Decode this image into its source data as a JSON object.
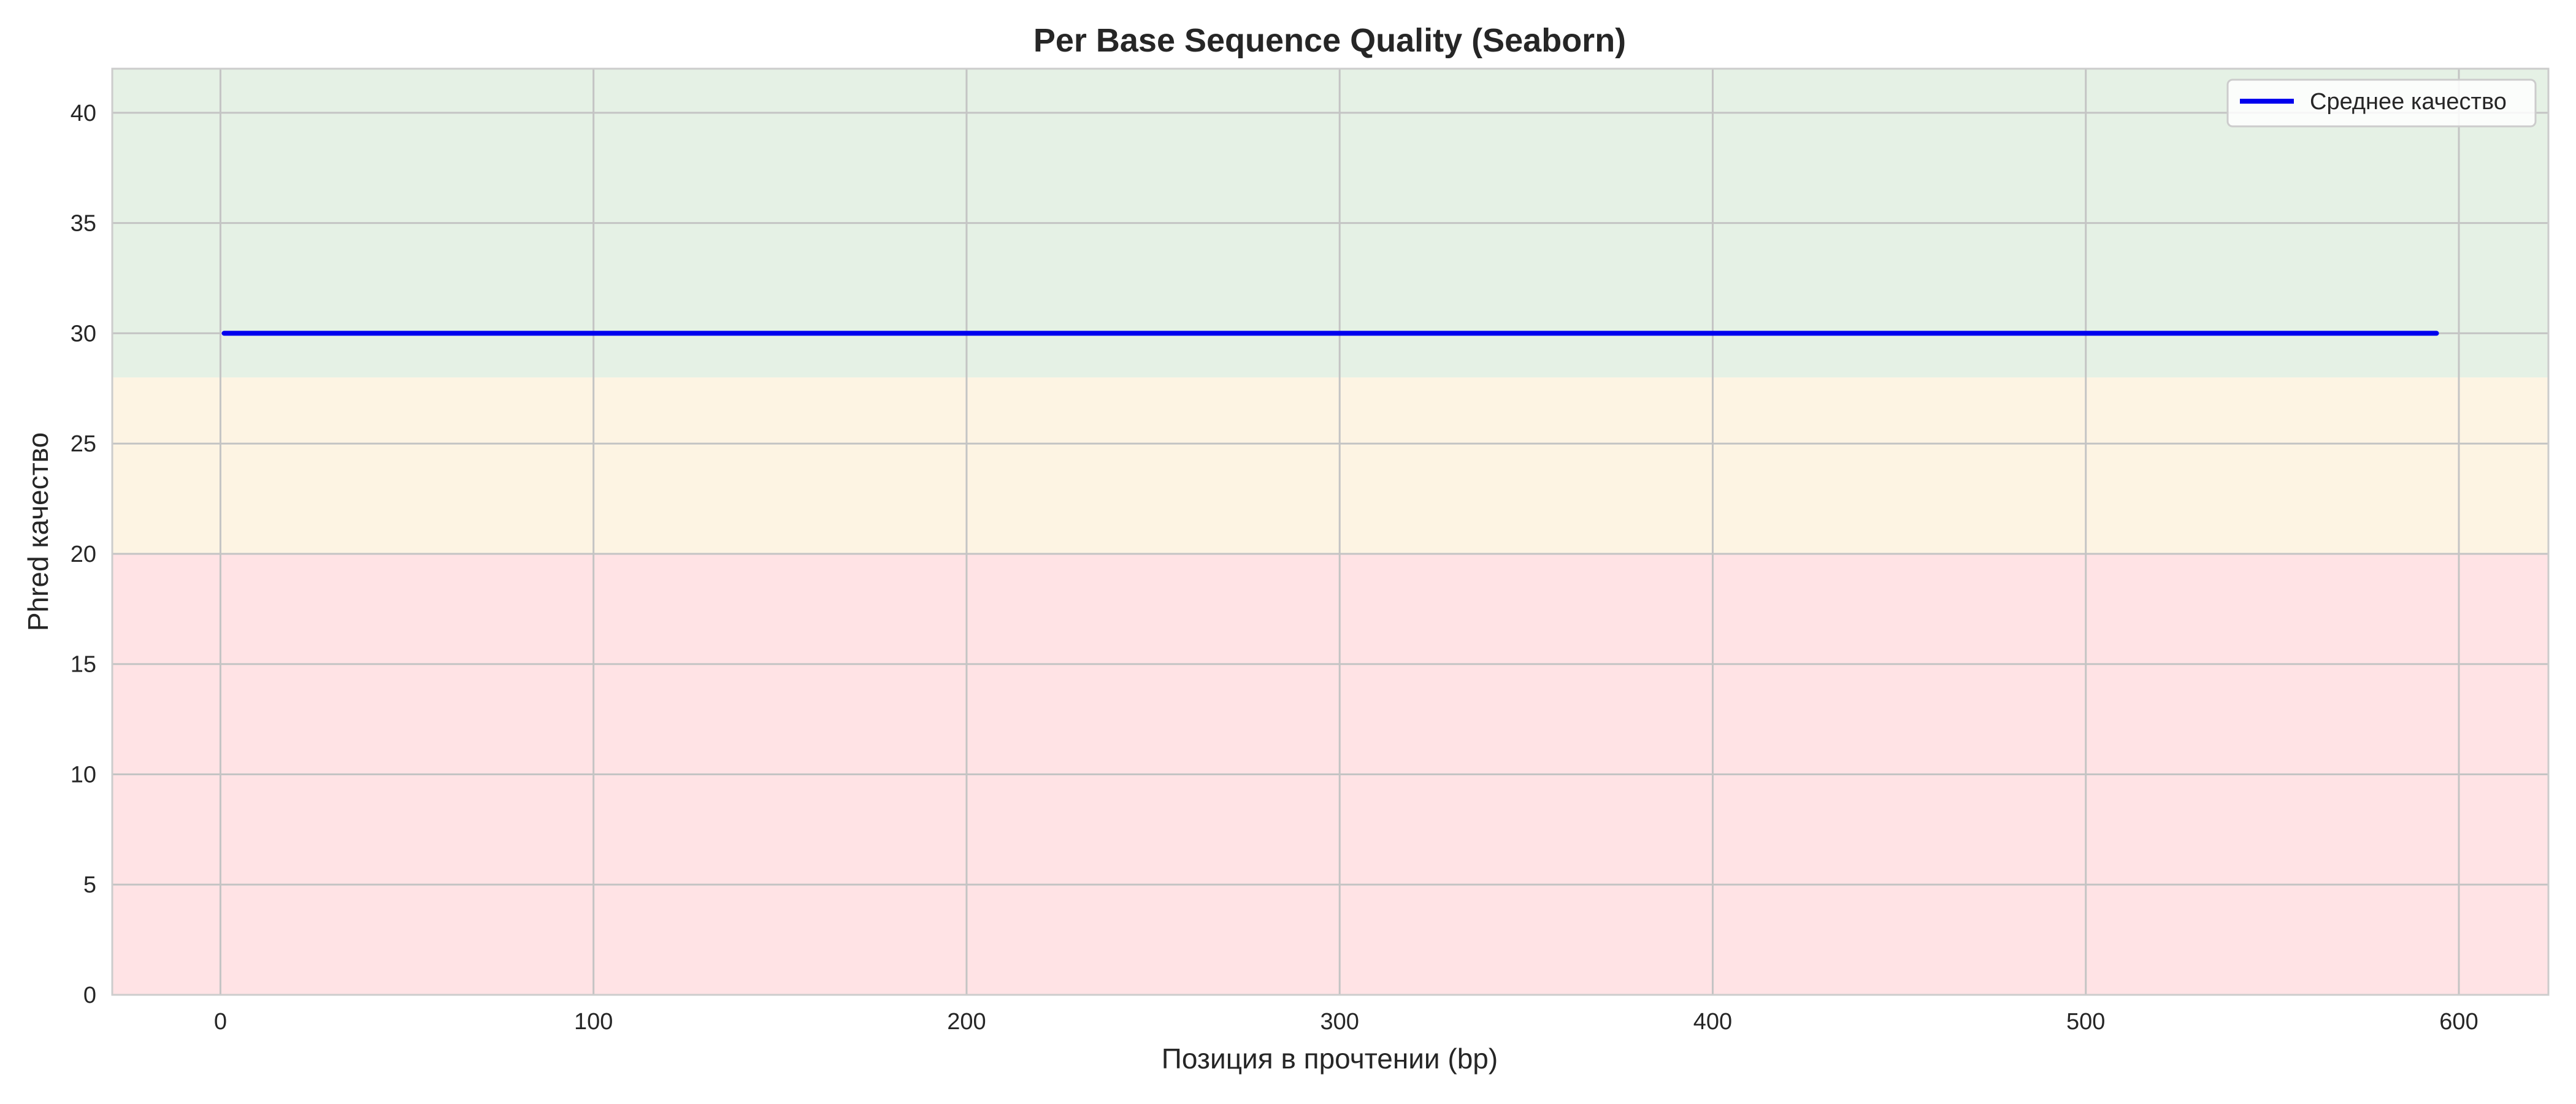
{
  "chart_data": {
    "type": "line",
    "title": "Per Base Sequence Quality (Seaborn)",
    "xlabel": "Позиция в прочтении (bp)",
    "ylabel": "Phred качество",
    "xlim": [
      -29,
      624
    ],
    "ylim": [
      0,
      42
    ],
    "x_ticks": [
      0,
      100,
      200,
      300,
      400,
      500,
      600
    ],
    "y_ticks": [
      0,
      5,
      10,
      15,
      20,
      25,
      30,
      35,
      40
    ],
    "grid": true,
    "legend_position": "top-right",
    "background_bands": [
      {
        "from": 0,
        "to": 20,
        "color": "#ffe3e5"
      },
      {
        "from": 20,
        "to": 28,
        "color": "#fdf4e3"
      },
      {
        "from": 28,
        "to": 42,
        "color": "#e5f1e5"
      }
    ],
    "series": [
      {
        "name": "Среднее качество",
        "color": "#0000ee",
        "x": [
          1,
          100,
          200,
          300,
          400,
          500,
          594
        ],
        "y": [
          30,
          30,
          30,
          30,
          30,
          30,
          30
        ]
      }
    ]
  }
}
